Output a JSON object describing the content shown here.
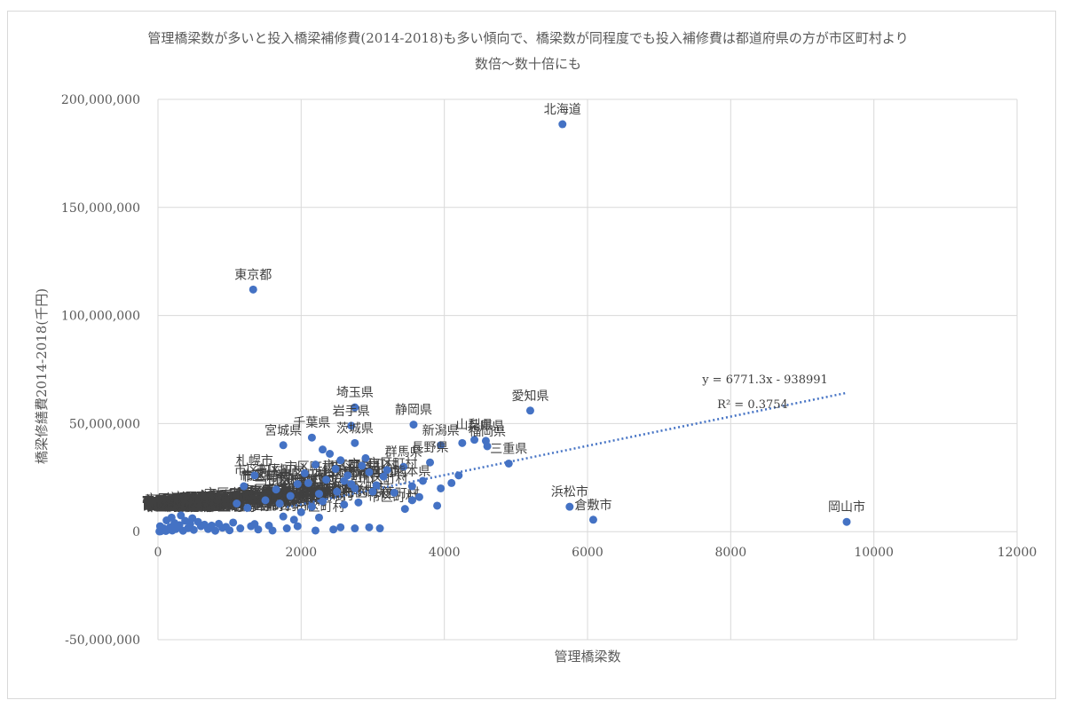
{
  "chart_data": {
    "type": "scatter",
    "title_line1": "管理橋梁数が多いと投入橋梁補修費(2014-2018)も多い傾向で、橋梁数が同程度でも投入補修費は都道府県の方が市区町村より",
    "title_line2": "数倍～数十倍にも",
    "xlabel": "管理橋梁数",
    "ylabel": "橋梁修繕費2014-2018(千円)",
    "xlim": [
      0,
      12000
    ],
    "ylim": [
      -50000000,
      200000000
    ],
    "x_ticks": [
      0,
      2000,
      4000,
      6000,
      8000,
      10000,
      12000
    ],
    "x_tick_labels": [
      "0",
      "2000",
      "4000",
      "6000",
      "8000",
      "10000",
      "12000"
    ],
    "y_ticks": [
      -50000000,
      0,
      50000000,
      100000000,
      150000000,
      200000000
    ],
    "y_tick_labels": [
      "-50,000,000",
      "0",
      "50,000,000",
      "100,000,000",
      "150,000,000",
      "200,000,000"
    ],
    "grid": true,
    "marker_color": "#4472c4",
    "label_color": "#404040",
    "trendline": {
      "equation": "y = 6771.3x - 938991",
      "r2_label": "R² = 0.3754",
      "slope": 6771.3,
      "intercept": -938991,
      "x_range": [
        0,
        9600
      ],
      "color": "#4472c4",
      "style": "dotted"
    },
    "labeled_points": [
      {
        "name": "北海道",
        "x": 5650,
        "y": 188500000
      },
      {
        "name": "東京都",
        "x": 1330,
        "y": 112000000
      },
      {
        "name": "埼玉県",
        "x": 2750,
        "y": 57500000
      },
      {
        "name": "岩手県",
        "x": 2700,
        "y": 49000000
      },
      {
        "name": "愛知県",
        "x": 5200,
        "y": 56000000
      },
      {
        "name": "静岡県",
        "x": 3570,
        "y": 49500000
      },
      {
        "name": "宮城県",
        "x": 1750,
        "y": 40000000
      },
      {
        "name": "千葉県",
        "x": 2150,
        "y": 43500000
      },
      {
        "name": "茨城県",
        "x": 2750,
        "y": 41000000
      },
      {
        "name": "新潟県",
        "x": 3950,
        "y": 40000000
      },
      {
        "name": "兵庫県",
        "x": 4580,
        "y": 42000000
      },
      {
        "name": "山梨県",
        "x": 4420,
        "y": 42500000
      },
      {
        "name": "福岡県",
        "x": 4600,
        "y": 39500000
      },
      {
        "name": "群馬県",
        "x": 3430,
        "y": 30000000
      },
      {
        "name": "長野県",
        "x": 3800,
        "y": 32000000
      },
      {
        "name": "熊本県",
        "x": 3550,
        "y": 21000000
      },
      {
        "name": "三重県",
        "x": 4900,
        "y": 31500000
      },
      {
        "name": "札幌市",
        "x": 1350,
        "y": 26000000
      },
      {
        "name": "浜松市",
        "x": 5750,
        "y": 11500000
      },
      {
        "name": "倉敷市",
        "x": 6080,
        "y": 5500000
      },
      {
        "name": "岡山市",
        "x": 9620,
        "y": 4500000
      }
    ],
    "other_points": [
      {
        "x": 2300,
        "y": 38000000
      },
      {
        "x": 2400,
        "y": 36000000
      },
      {
        "x": 2550,
        "y": 33000000
      },
      {
        "x": 2200,
        "y": 31000000
      },
      {
        "x": 2480,
        "y": 29000000
      },
      {
        "x": 2900,
        "y": 34000000
      },
      {
        "x": 2650,
        "y": 26000000
      },
      {
        "x": 2350,
        "y": 24000000
      },
      {
        "x": 2100,
        "y": 22500000
      },
      {
        "x": 2950,
        "y": 27500000
      },
      {
        "x": 3150,
        "y": 25500000
      },
      {
        "x": 3050,
        "y": 21500000
      },
      {
        "x": 2750,
        "y": 20000000
      },
      {
        "x": 2500,
        "y": 18500000
      },
      {
        "x": 2250,
        "y": 17500000
      },
      {
        "x": 1950,
        "y": 22000000
      },
      {
        "x": 1850,
        "y": 16500000
      },
      {
        "x": 3300,
        "y": 18000000
      },
      {
        "x": 3650,
        "y": 16000000
      },
      {
        "x": 3950,
        "y": 20000000
      },
      {
        "x": 4200,
        "y": 26000000
      },
      {
        "x": 4250,
        "y": 41000000
      },
      {
        "x": 3000,
        "y": 18500000
      },
      {
        "x": 3450,
        "y": 10500000
      },
      {
        "x": 3900,
        "y": 12000000
      },
      {
        "x": 2600,
        "y": 12500000
      },
      {
        "x": 2800,
        "y": 13500000
      },
      {
        "x": 2300,
        "y": 14000000
      },
      {
        "x": 2150,
        "y": 11500000
      },
      {
        "x": 1700,
        "y": 13000000
      },
      {
        "x": 1500,
        "y": 14500000
      },
      {
        "x": 1250,
        "y": 11000000
      },
      {
        "x": 1100,
        "y": 13000000
      },
      {
        "x": 1200,
        "y": 21000000
      },
      {
        "x": 1650,
        "y": 19500000
      },
      {
        "x": 2050,
        "y": 27000000
      },
      {
        "x": 2600,
        "y": 23500000
      },
      {
        "x": 2850,
        "y": 30500000
      },
      {
        "x": 3200,
        "y": 28500000
      },
      {
        "x": 2700,
        "y": 22000000
      },
      {
        "x": 2250,
        "y": 6500000
      },
      {
        "x": 2550,
        "y": 2000000
      },
      {
        "x": 2750,
        "y": 1500000
      },
      {
        "x": 2950,
        "y": 2000000
      },
      {
        "x": 3100,
        "y": 1500000
      },
      {
        "x": 2450,
        "y": 1000000
      },
      {
        "x": 2200,
        "y": 500000
      },
      {
        "x": 1950,
        "y": 2500000
      },
      {
        "x": 1800,
        "y": 1500000
      },
      {
        "x": 1600,
        "y": 500000
      },
      {
        "x": 1400,
        "y": 1000000
      },
      {
        "x": 1300,
        "y": 2500000
      },
      {
        "x": 1150,
        "y": 1500000
      },
      {
        "x": 1000,
        "y": 600000
      },
      {
        "x": 900,
        "y": 1800000
      },
      {
        "x": 800,
        "y": 400000
      },
      {
        "x": 700,
        "y": 1200000
      },
      {
        "x": 600,
        "y": 2500000
      },
      {
        "x": 500,
        "y": 800000
      },
      {
        "x": 420,
        "y": 1600000
      },
      {
        "x": 350,
        "y": 400000
      },
      {
        "x": 300,
        "y": 3000000
      },
      {
        "x": 250,
        "y": 1200000
      },
      {
        "x": 200,
        "y": 500000
      },
      {
        "x": 170,
        "y": 2000000
      },
      {
        "x": 140,
        "y": 900000
      },
      {
        "x": 110,
        "y": 300000
      },
      {
        "x": 80,
        "y": 1500000
      },
      {
        "x": 60,
        "y": 600000
      },
      {
        "x": 40,
        "y": 200000
      },
      {
        "x": 30,
        "y": 2500000
      },
      {
        "x": 20,
        "y": 100000
      },
      {
        "x": 380,
        "y": 5000000
      },
      {
        "x": 450,
        "y": 3500000
      },
      {
        "x": 560,
        "y": 4500000
      },
      {
        "x": 650,
        "y": 3200000
      },
      {
        "x": 750,
        "y": 2800000
      },
      {
        "x": 850,
        "y": 3600000
      },
      {
        "x": 950,
        "y": 2200000
      },
      {
        "x": 1050,
        "y": 4200000
      },
      {
        "x": 1350,
        "y": 3500000
      },
      {
        "x": 1550,
        "y": 2800000
      },
      {
        "x": 230,
        "y": 4000000
      },
      {
        "x": 190,
        "y": 6500000
      },
      {
        "x": 320,
        "y": 7500000
      },
      {
        "x": 480,
        "y": 6200000
      },
      {
        "x": 120,
        "y": 5200000
      },
      {
        "x": 2000,
        "y": 9000000
      },
      {
        "x": 1900,
        "y": 5500000
      },
      {
        "x": 1750,
        "y": 7000000
      },
      {
        "x": 3550,
        "y": 14500000
      },
      {
        "x": 3700,
        "y": 23500000
      },
      {
        "x": 4100,
        "y": 22500000
      }
    ],
    "cluster_label_color": "#404040",
    "cluster_label_text": "市区町村"
  }
}
